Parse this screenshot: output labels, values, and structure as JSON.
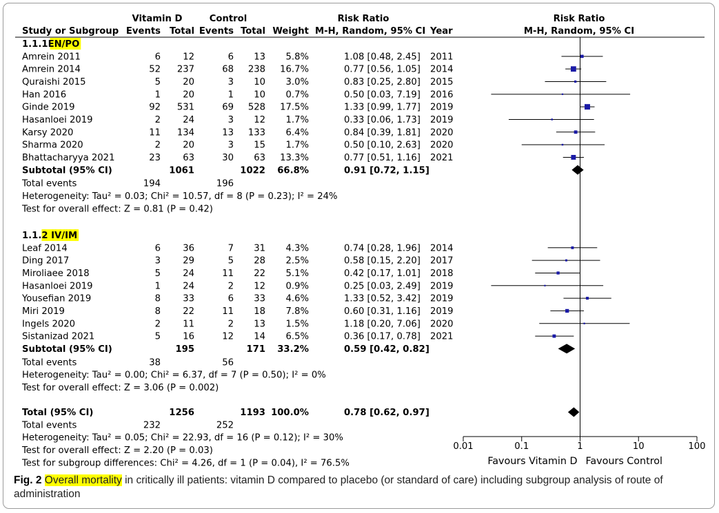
{
  "chart_data": {
    "type": "forest",
    "header": {
      "group1": "Vitamin D",
      "group2": "Control",
      "effect_col": "Risk Ratio",
      "effect_col_sub": "M-H, Random, 95% CI",
      "plot_title": "Risk Ratio",
      "plot_subtitle": "M-H, Random, 95% CI",
      "columns": [
        "Study or Subgroup",
        "Events",
        "Total",
        "Events",
        "Total",
        "Weight",
        "M-H, Random, 95% CI",
        "Year"
      ]
    },
    "x_axis": {
      "scale": "log",
      "range": [
        0.01,
        100
      ],
      "ticks": [
        0.01,
        0.1,
        1,
        10,
        100
      ],
      "tick_labels": [
        "0.01",
        "0.1",
        "1",
        "10",
        "100"
      ],
      "label_left": "Favours Vitamin D",
      "label_right": "Favours Control"
    },
    "subgroups": [
      {
        "id_prefix": "1.1.1",
        "name": "EN/PO",
        "highlight": "#ffff00",
        "studies": [
          {
            "study": "Amrein 2011",
            "e1": "6",
            "t1": "12",
            "e2": "6",
            "t2": "13",
            "weight": "5.8%",
            "rr": 1.08,
            "lo": 0.48,
            "hi": 2.45,
            "ci_text": "1.08 [0.48, 2.45]",
            "year": "2011"
          },
          {
            "study": "Amrein 2014",
            "e1": "52",
            "t1": "237",
            "e2": "68",
            "t2": "238",
            "weight": "16.7%",
            "rr": 0.77,
            "lo": 0.56,
            "hi": 1.05,
            "ci_text": "0.77 [0.56, 1.05]",
            "year": "2014"
          },
          {
            "study": "Quraishi 2015",
            "e1": "5",
            "t1": "20",
            "e2": "3",
            "t2": "10",
            "weight": "3.0%",
            "rr": 0.83,
            "lo": 0.25,
            "hi": 2.8,
            "ci_text": "0.83 [0.25, 2.80]",
            "year": "2015"
          },
          {
            "study": "Han 2016",
            "e1": "1",
            "t1": "20",
            "e2": "1",
            "t2": "10",
            "weight": "0.7%",
            "rr": 0.5,
            "lo": 0.03,
            "hi": 7.19,
            "ci_text": "0.50 [0.03, 7.19]",
            "year": "2016"
          },
          {
            "study": "Ginde 2019",
            "e1": "92",
            "t1": "531",
            "e2": "69",
            "t2": "528",
            "weight": "17.5%",
            "rr": 1.33,
            "lo": 0.99,
            "hi": 1.77,
            "ci_text": "1.33 [0.99, 1.77]",
            "year": "2019"
          },
          {
            "study": "Hasanloei 2019",
            "e1": "2",
            "t1": "24",
            "e2": "3",
            "t2": "12",
            "weight": "1.7%",
            "rr": 0.33,
            "lo": 0.06,
            "hi": 1.73,
            "ci_text": "0.33 [0.06, 1.73]",
            "year": "2019"
          },
          {
            "study": "Karsy 2020",
            "e1": "11",
            "t1": "134",
            "e2": "13",
            "t2": "133",
            "weight": "6.4%",
            "rr": 0.84,
            "lo": 0.39,
            "hi": 1.81,
            "ci_text": "0.84 [0.39, 1.81]",
            "year": "2020"
          },
          {
            "study": "Sharma 2020",
            "e1": "2",
            "t1": "20",
            "e2": "3",
            "t2": "15",
            "weight": "1.7%",
            "rr": 0.5,
            "lo": 0.1,
            "hi": 2.63,
            "ci_text": "0.50 [0.10, 2.63]",
            "year": "2020"
          },
          {
            "study": "Bhattacharyya 2021",
            "e1": "23",
            "t1": "63",
            "e2": "30",
            "t2": "63",
            "weight": "13.3%",
            "rr": 0.77,
            "lo": 0.51,
            "hi": 1.16,
            "ci_text": "0.77 [0.51, 1.16]",
            "year": "2021"
          }
        ],
        "subtotal": {
          "label": "Subtotal (95% CI)",
          "t1": "1061",
          "t2": "1022",
          "weight": "66.8%",
          "rr": 0.91,
          "lo": 0.72,
          "hi": 1.15,
          "ci_text": "0.91 [0.72, 1.15]"
        },
        "total_events": {
          "label": "Total events",
          "e1": "194",
          "e2": "196"
        },
        "heterogeneity": "Heterogeneity: Tau² = 0.03; Chi² = 10.57, df = 8 (P = 0.23); I² = 24%",
        "overall_effect": "Test for overall effect: Z = 0.81 (P = 0.42)"
      },
      {
        "id_prefix": "1.1.",
        "id_suffix": "2",
        "name": "IV/IM",
        "highlight": "#ffff00",
        "studies": [
          {
            "study": "Leaf 2014",
            "e1": "6",
            "t1": "36",
            "e2": "7",
            "t2": "31",
            "weight": "4.3%",
            "rr": 0.74,
            "lo": 0.28,
            "hi": 1.96,
            "ci_text": "0.74 [0.28, 1.96]",
            "year": "2014"
          },
          {
            "study": "Ding 2017",
            "e1": "3",
            "t1": "29",
            "e2": "5",
            "t2": "28",
            "weight": "2.5%",
            "rr": 0.58,
            "lo": 0.15,
            "hi": 2.2,
            "ci_text": "0.58 [0.15, 2.20]",
            "year": "2017"
          },
          {
            "study": "Miroliaee 2018",
            "e1": "5",
            "t1": "24",
            "e2": "11",
            "t2": "22",
            "weight": "5.1%",
            "rr": 0.42,
            "lo": 0.17,
            "hi": 1.01,
            "ci_text": "0.42 [0.17, 1.01]",
            "year": "2018"
          },
          {
            "study": "Hasanloei 2019",
            "e1": "1",
            "t1": "24",
            "e2": "2",
            "t2": "12",
            "weight": "0.9%",
            "rr": 0.25,
            "lo": 0.03,
            "hi": 2.49,
            "ci_text": "0.25 [0.03, 2.49]",
            "year": "2019"
          },
          {
            "study": "Yousefian 2019",
            "e1": "8",
            "t1": "33",
            "e2": "6",
            "t2": "33",
            "weight": "4.6%",
            "rr": 1.33,
            "lo": 0.52,
            "hi": 3.42,
            "ci_text": "1.33 [0.52, 3.42]",
            "year": "2019"
          },
          {
            "study": "Miri 2019",
            "e1": "8",
            "t1": "22",
            "e2": "11",
            "t2": "18",
            "weight": "7.8%",
            "rr": 0.6,
            "lo": 0.31,
            "hi": 1.16,
            "ci_text": "0.60 [0.31, 1.16]",
            "year": "2019"
          },
          {
            "study": "Ingels 2020",
            "e1": "2",
            "t1": "11",
            "e2": "2",
            "t2": "13",
            "weight": "1.5%",
            "rr": 1.18,
            "lo": 0.2,
            "hi": 7.06,
            "ci_text": "1.18 [0.20, 7.06]",
            "year": "2020"
          },
          {
            "study": "Sistanizad 2021",
            "e1": "5",
            "t1": "16",
            "e2": "12",
            "t2": "14",
            "weight": "6.5%",
            "rr": 0.36,
            "lo": 0.17,
            "hi": 0.78,
            "ci_text": "0.36 [0.17, 0.78]",
            "year": "2021"
          }
        ],
        "subtotal": {
          "label": "Subtotal (95% CI)",
          "t1": "195",
          "t2": "171",
          "weight": "33.2%",
          "rr": 0.59,
          "lo": 0.42,
          "hi": 0.82,
          "ci_text": "0.59 [0.42, 0.82]"
        },
        "total_events": {
          "label": "Total events",
          "e1": "38",
          "e2": "56"
        },
        "heterogeneity": "Heterogeneity: Tau² = 0.00; Chi² = 6.37, df = 7 (P = 0.50); I² = 0%",
        "overall_effect": "Test for overall effect: Z = 3.06 (P = 0.002)"
      }
    ],
    "total": {
      "label": "Total (95% CI)",
      "t1": "1256",
      "t2": "1193",
      "weight": "100.0%",
      "rr": 0.78,
      "lo": 0.62,
      "hi": 0.97,
      "ci_text": "0.78 [0.62, 0.97]"
    },
    "total_events": {
      "label": "Total events",
      "e1": "232",
      "e2": "252"
    },
    "heterogeneity": "Heterogeneity: Tau² = 0.05; Chi² = 22.93, df = 16 (P = 0.12); I² = 30%",
    "overall_effect": "Test for overall effect: Z = 2.20 (P = 0.03)",
    "subgroup_differences": "Test for subgroup differences: Chi² = 4.26, df = 1 (P = 0.04), I² = 76.5%",
    "colors": {
      "square": "#1a1aa6",
      "text": "#000000",
      "highlight": "#ffff00"
    }
  },
  "caption": {
    "fig_label": "Fig. 2",
    "highlighted": "Overall mortality",
    "rest": " in critically ill patients: vitamin D compared to placebo (or standard of care) including subgroup analysis of route of administration"
  }
}
